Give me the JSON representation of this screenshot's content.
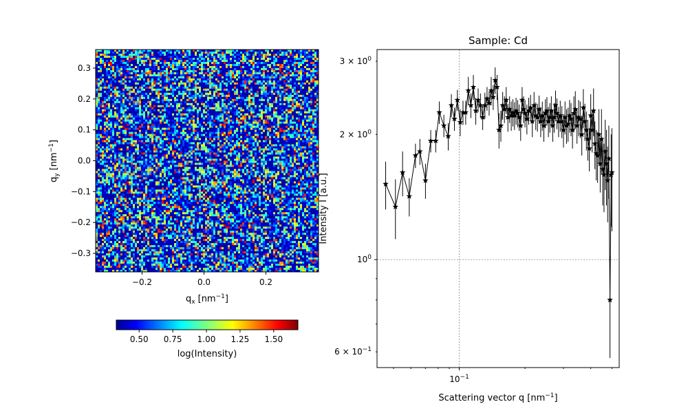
{
  "chart_data": [
    {
      "type": "heatmap",
      "title": "",
      "xlabel": "q",
      "xlabel_sub": "x",
      "xlabel_unit": "[nm",
      "xlabel_unit_exp": "−1",
      "xlabel_unit_close": "]",
      "ylabel": "q",
      "ylabel_sub": "y",
      "ylabel_unit": "[nm",
      "ylabel_unit_exp": "−1",
      "ylabel_unit_close": "]",
      "xlim": [
        -0.35,
        0.37
      ],
      "ylim": [
        -0.36,
        0.36
      ],
      "x_ticks": [
        -0.2,
        0.0,
        0.2
      ],
      "x_tick_labels": [
        "−0.2",
        "0.0",
        "0.2"
      ],
      "y_ticks": [
        -0.3,
        -0.2,
        -0.1,
        0.0,
        0.1,
        0.2,
        0.3
      ],
      "y_tick_labels": [
        "−0.3",
        "−0.2",
        "−0.1",
        "0.0",
        "0.1",
        "0.2",
        "0.3"
      ],
      "colormap": "jet",
      "colorbar": {
        "label": "log(Intensity)",
        "range": [
          0.33,
          1.68
        ],
        "ticks": [
          0.5,
          0.75,
          1.0,
          1.25,
          1.5
        ],
        "tick_labels": [
          "0.50",
          "0.75",
          "1.00",
          "1.25",
          "1.50"
        ],
        "orientation": "horizontal"
      },
      "pattern": "noisy speckle, values mostly low (blue) with scattered higher (cyan/yellow/red) pixels"
    },
    {
      "type": "scatter",
      "title": "Sample: Cd",
      "xlabel": "Scattering vector q [nm",
      "xlabel_exp": "−1",
      "xlabel_close": "]",
      "ylabel": "Intensity I [a.u.]",
      "xscale": "log",
      "yscale": "log",
      "xlim": [
        0.042,
        0.54
      ],
      "ylim": [
        0.55,
        3.2
      ],
      "x_major_tick": {
        "value": 0.1,
        "base": "10",
        "exp": "−1"
      },
      "y_major_ticks": [
        {
          "value": 1.0,
          "base": "10",
          "exp": "0",
          "coef": ""
        },
        {
          "value": 2.0,
          "base": "10",
          "exp": "0",
          "coef": "2 × "
        },
        {
          "value": 3.0,
          "base": "10",
          "exp": "0",
          "coef": "3 × "
        },
        {
          "value": 0.6,
          "base": "10",
          "exp": "−1",
          "coef": "6 × "
        }
      ],
      "marker": "star",
      "color": "#000000",
      "gridlines": {
        "x": [
          0.1
        ],
        "y": [
          1.0
        ],
        "style": "dashed"
      },
      "series": [
        {
          "x": [
            0.046,
            0.051,
            0.055,
            0.059,
            0.063,
            0.066,
            0.07,
            0.074,
            0.078,
            0.081,
            0.085,
            0.089,
            0.092,
            0.095,
            0.098,
            0.101,
            0.104,
            0.107,
            0.11,
            0.113,
            0.116,
            0.119,
            0.122,
            0.125,
            0.128,
            0.131,
            0.134,
            0.137,
            0.14,
            0.143,
            0.146,
            0.149,
            0.152,
            0.155,
            0.158,
            0.161,
            0.164,
            0.167,
            0.17,
            0.173,
            0.176,
            0.179,
            0.182,
            0.185,
            0.188,
            0.191,
            0.194,
            0.197,
            0.2,
            0.204,
            0.208,
            0.212,
            0.216,
            0.22,
            0.224,
            0.228,
            0.232,
            0.236,
            0.24,
            0.244,
            0.248,
            0.252,
            0.256,
            0.26,
            0.264,
            0.268,
            0.272,
            0.276,
            0.28,
            0.285,
            0.29,
            0.295,
            0.3,
            0.305,
            0.31,
            0.315,
            0.32,
            0.325,
            0.33,
            0.335,
            0.34,
            0.346,
            0.352,
            0.358,
            0.364,
            0.37,
            0.376,
            0.382,
            0.388,
            0.394,
            0.4,
            0.406,
            0.412,
            0.418,
            0.424,
            0.43,
            0.436,
            0.442,
            0.448,
            0.454,
            0.46,
            0.466,
            0.472,
            0.478,
            0.484,
            0.49,
            0.496,
            0.5
          ],
          "y": [
            1.52,
            1.34,
            1.62,
            1.42,
            1.78,
            1.82,
            1.55,
            1.93,
            1.93,
            2.26,
            2.1,
            1.98,
            2.35,
            2.18,
            2.42,
            2.14,
            2.26,
            2.26,
            2.55,
            2.35,
            2.6,
            2.28,
            2.42,
            2.35,
            2.2,
            2.35,
            2.44,
            2.38,
            2.55,
            2.46,
            2.7,
            2.6,
            2.05,
            2.1,
            2.35,
            2.3,
            2.42,
            2.2,
            2.3,
            2.22,
            2.26,
            2.22,
            2.28,
            2.25,
            2.2,
            2.1,
            2.42,
            2.3,
            2.25,
            2.18,
            2.28,
            2.32,
            2.15,
            2.35,
            2.22,
            2.2,
            2.3,
            2.15,
            2.22,
            2.1,
            2.25,
            2.28,
            2.15,
            2.2,
            2.28,
            2.1,
            2.2,
            2.35,
            2.25,
            2.15,
            2.22,
            2.15,
            2.05,
            2.2,
            2.1,
            2.12,
            2.22,
            2.18,
            2.05,
            2.25,
            2.3,
            2.1,
            2.2,
            2.18,
            2.0,
            2.32,
            2.15,
            2.05,
            1.95,
            1.85,
            2.22,
            2.05,
            2.28,
            1.9,
            1.8,
            1.78,
            2.0,
            1.7,
            1.95,
            1.65,
            1.6,
            1.82,
            1.7,
            1.55,
            1.75,
            0.8,
            1.6,
            1.62
          ],
          "yerr": [
            0.2,
            0.22,
            0.2,
            0.15,
            0.12,
            0.13,
            0.15,
            0.12,
            0.12,
            0.14,
            0.13,
            0.15,
            0.15,
            0.14,
            0.14,
            0.16,
            0.15,
            0.15,
            0.2,
            0.16,
            0.18,
            0.17,
            0.16,
            0.16,
            0.15,
            0.17,
            0.16,
            0.16,
            0.2,
            0.17,
            0.2,
            0.18,
            0.2,
            0.18,
            0.18,
            0.17,
            0.18,
            0.17,
            0.17,
            0.18,
            0.17,
            0.17,
            0.17,
            0.17,
            0.16,
            0.17,
            0.18,
            0.17,
            0.17,
            0.18,
            0.17,
            0.17,
            0.18,
            0.18,
            0.17,
            0.17,
            0.18,
            0.18,
            0.18,
            0.18,
            0.18,
            0.18,
            0.18,
            0.18,
            0.19,
            0.18,
            0.18,
            0.2,
            0.19,
            0.18,
            0.19,
            0.19,
            0.19,
            0.2,
            0.2,
            0.2,
            0.2,
            0.2,
            0.2,
            0.22,
            0.24,
            0.2,
            0.22,
            0.22,
            0.22,
            0.25,
            0.22,
            0.22,
            0.22,
            0.22,
            0.28,
            0.24,
            0.3,
            0.25,
            0.25,
            0.25,
            0.3,
            0.25,
            0.35,
            0.3,
            0.3,
            0.35,
            0.35,
            0.32,
            0.35,
            0.22,
            0.4,
            0.45
          ]
        }
      ]
    }
  ]
}
